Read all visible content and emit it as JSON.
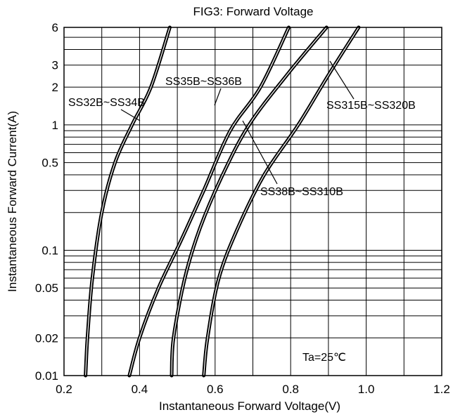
{
  "chart_data": {
    "type": "line",
    "title": "FIG3: Forward Voltage",
    "xlabel": "Instantaneous Forward Voltage(V)",
    "ylabel": "Instantaneous Forward Current(A)",
    "xscale": "linear",
    "yscale": "log",
    "xlim": [
      0.2,
      1.2
    ],
    "ylim": [
      0.01,
      6
    ],
    "xticks": [
      0.2,
      0.4,
      0.6,
      0.8,
      1.0,
      1.2
    ],
    "xtick_labels": [
      "0.2",
      "0.4",
      "0.6",
      "0.8",
      "1.0",
      "1.2"
    ],
    "yticks": [
      0.01,
      0.02,
      0.05,
      0.1,
      0.5,
      1,
      2,
      3,
      6
    ],
    "ytick_labels": [
      "0.01",
      "0.02",
      "0.05",
      "0.1",
      "0.5",
      "1",
      "2",
      "3",
      "6"
    ],
    "grid": true,
    "annotation": "Ta=25℃",
    "series": [
      {
        "name": "SS32B~SS34B",
        "x": [
          0.257,
          0.262,
          0.275,
          0.3,
          0.335,
          0.38,
          0.43,
          0.48
        ],
        "y": [
          0.01,
          0.02,
          0.06,
          0.2,
          0.5,
          1.0,
          2.0,
          6.0
        ]
      },
      {
        "name": "SS35B~SS36B",
        "x": [
          0.373,
          0.4,
          0.45,
          0.51,
          0.57,
          0.64,
          0.72,
          0.795
        ],
        "y": [
          0.01,
          0.02,
          0.05,
          0.12,
          0.3,
          0.9,
          2.0,
          6.0
        ]
      },
      {
        "name": "SS38B~SS310B",
        "x": [
          0.485,
          0.49,
          0.52,
          0.56,
          0.62,
          0.69,
          0.79,
          0.895
        ],
        "y": [
          0.01,
          0.02,
          0.06,
          0.15,
          0.4,
          1.0,
          2.5,
          6.0
        ]
      },
      {
        "name": "SS315B~SS320B",
        "x": [
          0.57,
          0.58,
          0.61,
          0.66,
          0.73,
          0.82,
          0.9,
          0.98
        ],
        "y": [
          0.01,
          0.02,
          0.06,
          0.15,
          0.4,
          1.0,
          2.5,
          6.0
        ]
      }
    ],
    "labels": [
      {
        "series": 0,
        "text": "SS32B~SS34B"
      },
      {
        "series": 1,
        "text": "SS35B~SS36B"
      },
      {
        "series": 2,
        "text": "SS38B~SS310B"
      },
      {
        "series": 3,
        "text": "SS315B~SS320B"
      }
    ]
  }
}
